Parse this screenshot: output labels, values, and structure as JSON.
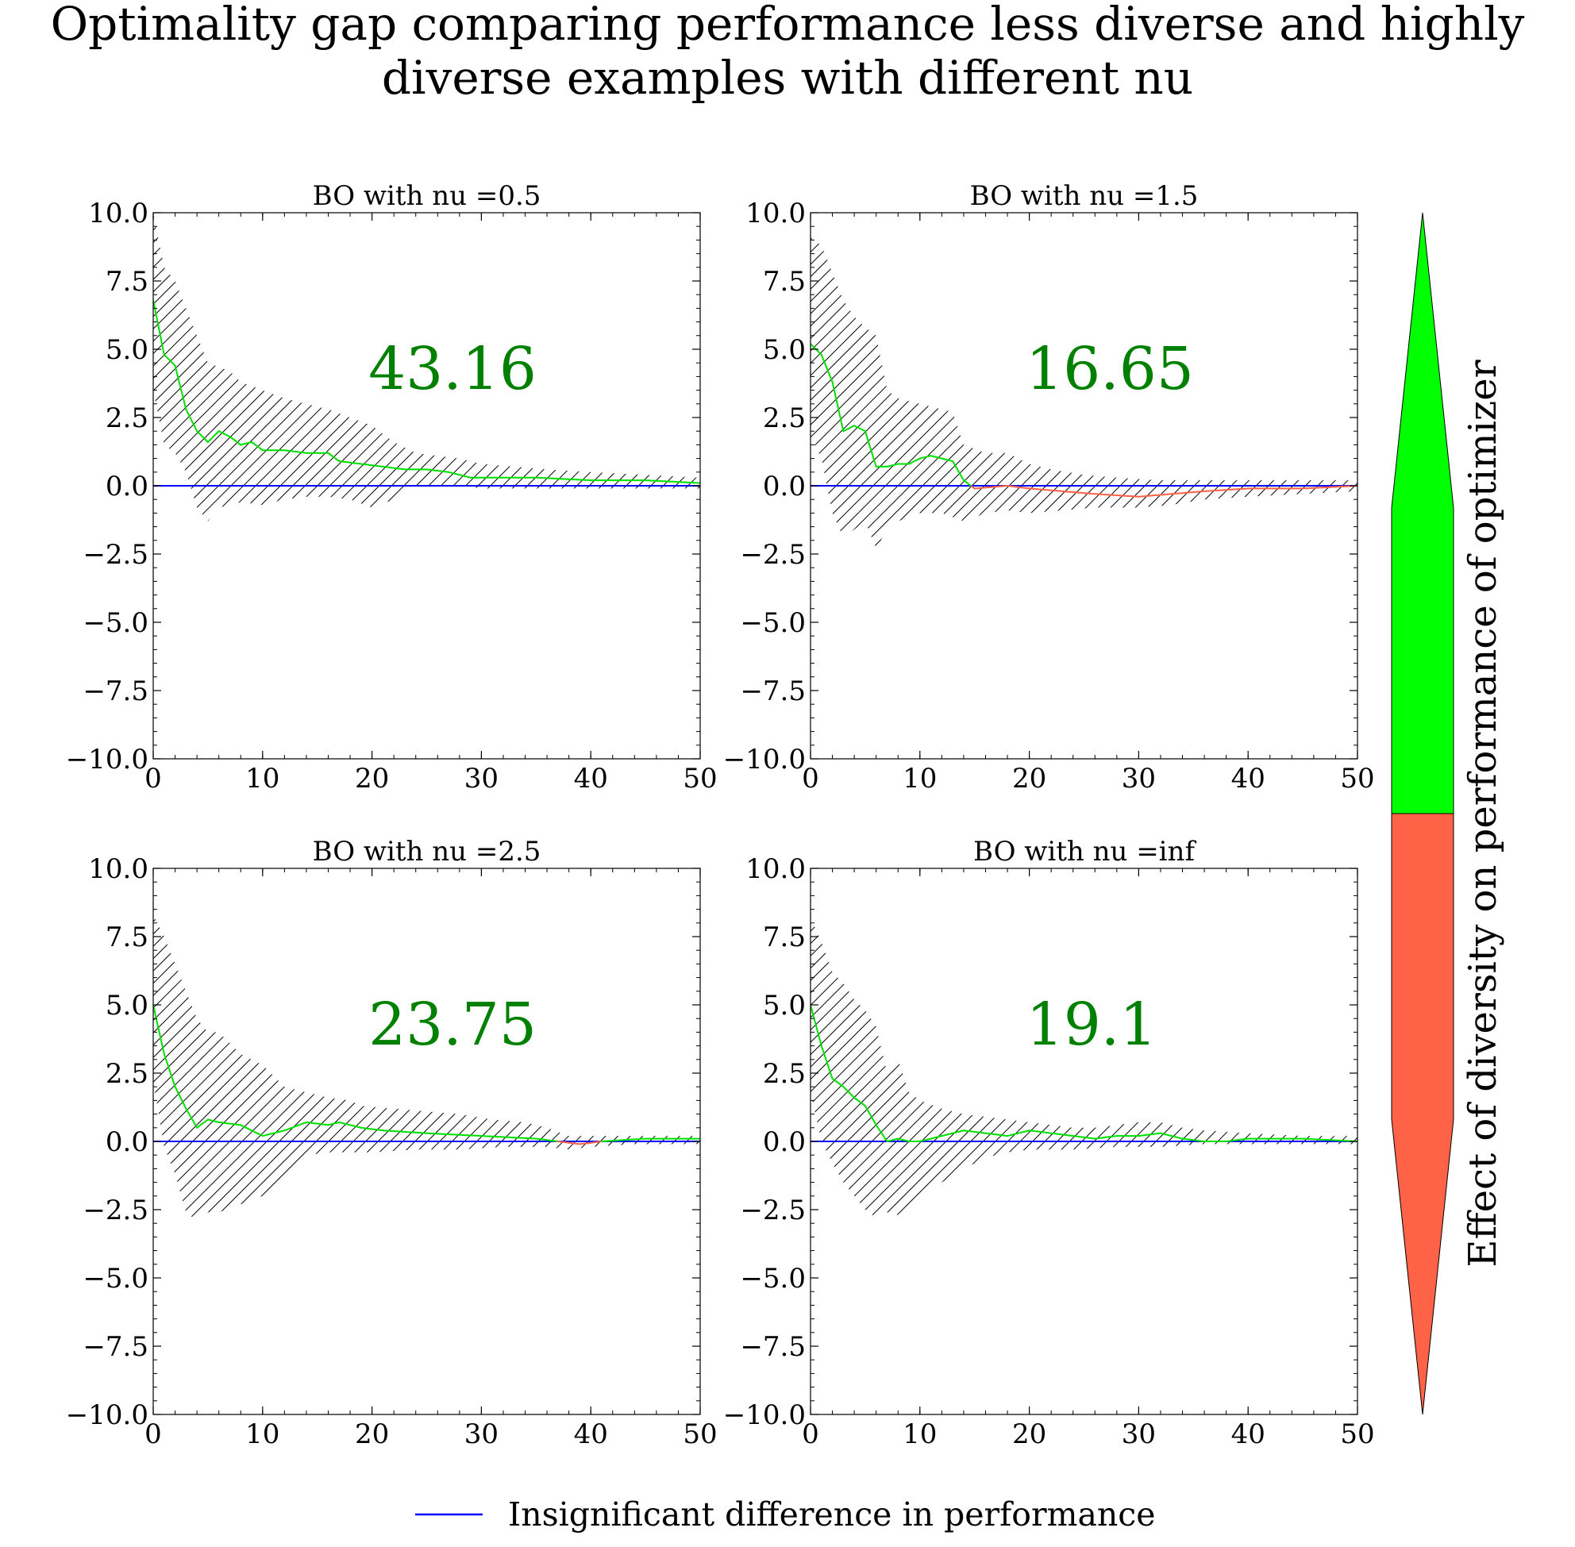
{
  "figure": {
    "title_line1": "Optimality gap comparing performance less diverse and highly",
    "title_line2": "diverse examples with different nu",
    "colorbar_label": "Effect of diversity on performance of optimizer",
    "legend_label": "Insignificant difference in performance"
  },
  "colors": {
    "baseline": "#0000ff",
    "positive_line": "#00e000",
    "negative_line": "#ff6347",
    "annotation": "#008000",
    "colorbar_top": "#00ff00",
    "colorbar_bottom": "#ff6347",
    "hatch": "#000000"
  },
  "chart_data": [
    {
      "type": "line",
      "title": "BO with nu =0.5",
      "annotation": "43.16",
      "xlim": [
        0,
        50
      ],
      "ylim": [
        -10,
        10
      ],
      "xticks": [
        "0",
        "10",
        "20",
        "30",
        "40",
        "50"
      ],
      "yticks": [
        "10.0",
        "7.5",
        "5.0",
        "2.5",
        "0.0",
        "−2.5",
        "−5.0",
        "−7.5",
        "−10.0"
      ],
      "mean": [
        [
          0,
          6.8
        ],
        [
          1,
          4.8
        ],
        [
          2,
          4.4
        ],
        [
          3,
          2.8
        ],
        [
          4,
          2.0
        ],
        [
          5,
          1.6
        ],
        [
          6,
          2.0
        ],
        [
          7,
          1.8
        ],
        [
          8,
          1.5
        ],
        [
          9,
          1.6
        ],
        [
          10,
          1.3
        ],
        [
          12,
          1.3
        ],
        [
          14,
          1.2
        ],
        [
          16,
          1.2
        ],
        [
          17,
          0.9
        ],
        [
          19,
          0.8
        ],
        [
          21,
          0.7
        ],
        [
          23,
          0.6
        ],
        [
          25,
          0.6
        ],
        [
          27,
          0.5
        ],
        [
          29,
          0.3
        ],
        [
          31,
          0.3
        ],
        [
          35,
          0.3
        ],
        [
          40,
          0.2
        ],
        [
          45,
          0.2
        ],
        [
          50,
          0.1
        ]
      ],
      "band_upper": [
        [
          0,
          10
        ],
        [
          1,
          8
        ],
        [
          2,
          7.5
        ],
        [
          3,
          6.5
        ],
        [
          4,
          5.5
        ],
        [
          5,
          4.5
        ],
        [
          7,
          4.2
        ],
        [
          8,
          3.8
        ],
        [
          10,
          3.5
        ],
        [
          12,
          3.2
        ],
        [
          14,
          3.0
        ],
        [
          16,
          2.8
        ],
        [
          18,
          2.5
        ],
        [
          20,
          2.2
        ],
        [
          22,
          1.6
        ],
        [
          24,
          1.2
        ],
        [
          26,
          1.1
        ],
        [
          28,
          1.0
        ],
        [
          30,
          0.8
        ],
        [
          33,
          0.7
        ],
        [
          36,
          0.6
        ],
        [
          40,
          0.5
        ],
        [
          45,
          0.4
        ],
        [
          50,
          0.3
        ]
      ],
      "band_lower": [
        [
          0,
          3.5
        ],
        [
          1,
          1.5
        ],
        [
          2,
          1.2
        ],
        [
          3,
          0.5
        ],
        [
          4,
          -0.8
        ],
        [
          5,
          -1.3
        ],
        [
          6,
          -0.8
        ],
        [
          8,
          -0.6
        ],
        [
          10,
          -0.7
        ],
        [
          12,
          -0.5
        ],
        [
          14,
          -0.4
        ],
        [
          16,
          -0.4
        ],
        [
          18,
          -0.5
        ],
        [
          20,
          -0.8
        ],
        [
          22,
          -0.5
        ],
        [
          24,
          0.0
        ],
        [
          26,
          0.0
        ],
        [
          28,
          0.0
        ],
        [
          30,
          -0.1
        ],
        [
          35,
          -0.1
        ],
        [
          40,
          -0.1
        ],
        [
          45,
          -0.1
        ],
        [
          50,
          -0.1
        ]
      ]
    },
    {
      "type": "line",
      "title": "BO with nu =1.5",
      "annotation": "16.65",
      "xlim": [
        0,
        50
      ],
      "ylim": [
        -10,
        10
      ],
      "xticks": [
        "0",
        "10",
        "20",
        "30",
        "40",
        "50"
      ],
      "yticks": [
        "10.0",
        "7.5",
        "5.0",
        "2.5",
        "0.0",
        "−2.5",
        "−5.0",
        "−7.5",
        "−10.0"
      ],
      "mean": [
        [
          0,
          5.2
        ],
        [
          1,
          4.8
        ],
        [
          2,
          3.8
        ],
        [
          3,
          2.0
        ],
        [
          4,
          2.2
        ],
        [
          5,
          2.0
        ],
        [
          6,
          0.7
        ],
        [
          7,
          0.7
        ],
        [
          8,
          0.8
        ],
        [
          9,
          0.8
        ],
        [
          10,
          1.0
        ],
        [
          11,
          1.1
        ],
        [
          12,
          1.0
        ],
        [
          13,
          0.9
        ],
        [
          14,
          0.2
        ],
        [
          15,
          -0.1
        ],
        [
          18,
          0.0
        ],
        [
          20,
          -0.1
        ],
        [
          23,
          -0.2
        ],
        [
          26,
          -0.3
        ],
        [
          30,
          -0.4
        ],
        [
          33,
          -0.3
        ],
        [
          36,
          -0.2
        ],
        [
          40,
          -0.1
        ],
        [
          45,
          -0.1
        ],
        [
          50,
          0.0
        ]
      ],
      "band_upper": [
        [
          0,
          9.1
        ],
        [
          1,
          8.8
        ],
        [
          2,
          7.8
        ],
        [
          3,
          6.8
        ],
        [
          4,
          6.2
        ],
        [
          5,
          5.8
        ],
        [
          6,
          5.5
        ],
        [
          7,
          3.5
        ],
        [
          8,
          3.2
        ],
        [
          10,
          3.0
        ],
        [
          12,
          2.8
        ],
        [
          13,
          2.7
        ],
        [
          14,
          1.5
        ],
        [
          16,
          1.2
        ],
        [
          18,
          1.2
        ],
        [
          20,
          0.8
        ],
        [
          22,
          0.6
        ],
        [
          25,
          0.4
        ],
        [
          28,
          0.3
        ],
        [
          32,
          0.2
        ],
        [
          36,
          0.2
        ],
        [
          40,
          0.2
        ],
        [
          45,
          0.2
        ],
        [
          50,
          0.2
        ]
      ],
      "band_lower": [
        [
          0,
          1.8
        ],
        [
          1,
          1.0
        ],
        [
          2,
          -1.0
        ],
        [
          3,
          -1.9
        ],
        [
          4,
          -1.6
        ],
        [
          5,
          -1.3
        ],
        [
          6,
          -2.3
        ],
        [
          7,
          -1.6
        ],
        [
          8,
          -1.3
        ],
        [
          10,
          -1.0
        ],
        [
          12,
          -1.0
        ],
        [
          14,
          -1.3
        ],
        [
          16,
          -1.0
        ],
        [
          18,
          -0.9
        ],
        [
          20,
          -1.0
        ],
        [
          23,
          -0.9
        ],
        [
          26,
          -0.8
        ],
        [
          30,
          -0.8
        ],
        [
          33,
          -0.7
        ],
        [
          36,
          -0.5
        ],
        [
          40,
          -0.4
        ],
        [
          45,
          -0.3
        ],
        [
          50,
          -0.2
        ]
      ]
    },
    {
      "type": "line",
      "title": "BO with nu =2.5",
      "annotation": "23.75",
      "xlim": [
        0,
        50
      ],
      "ylim": [
        -10,
        10
      ],
      "xticks": [
        "0",
        "10",
        "20",
        "30",
        "40",
        "50"
      ],
      "yticks": [
        "10.0",
        "7.5",
        "5.0",
        "2.5",
        "0.0",
        "−2.5",
        "−5.0",
        "−7.5",
        "−10.0"
      ],
      "mean": [
        [
          0,
          5.0
        ],
        [
          1,
          3.2
        ],
        [
          2,
          2.0
        ],
        [
          3,
          1.2
        ],
        [
          4,
          0.5
        ],
        [
          5,
          0.8
        ],
        [
          6,
          0.7
        ],
        [
          8,
          0.6
        ],
        [
          10,
          0.2
        ],
        [
          12,
          0.4
        ],
        [
          14,
          0.7
        ],
        [
          16,
          0.6
        ],
        [
          17,
          0.7
        ],
        [
          19,
          0.5
        ],
        [
          21,
          0.4
        ],
        [
          25,
          0.3
        ],
        [
          30,
          0.2
        ],
        [
          35,
          0.1
        ],
        [
          37,
          0.0
        ],
        [
          39,
          -0.1
        ],
        [
          41,
          0.0
        ],
        [
          45,
          0.1
        ],
        [
          50,
          0.1
        ]
      ],
      "band_upper": [
        [
          0,
          8.3
        ],
        [
          1,
          7.5
        ],
        [
          2,
          6.5
        ],
        [
          3,
          5.5
        ],
        [
          4,
          4.5
        ],
        [
          5,
          4.0
        ],
        [
          6,
          4.0
        ],
        [
          7,
          3.6
        ],
        [
          8,
          3.2
        ],
        [
          10,
          2.8
        ],
        [
          12,
          2.0
        ],
        [
          14,
          1.8
        ],
        [
          16,
          1.6
        ],
        [
          18,
          1.5
        ],
        [
          19,
          1.3
        ],
        [
          22,
          1.2
        ],
        [
          25,
          1.1
        ],
        [
          28,
          1.0
        ],
        [
          31,
          0.8
        ],
        [
          34,
          0.7
        ],
        [
          36,
          0.5
        ],
        [
          38,
          0.2
        ],
        [
          42,
          0.2
        ],
        [
          46,
          0.2
        ],
        [
          50,
          0.2
        ]
      ],
      "band_lower": [
        [
          0,
          2.2
        ],
        [
          1,
          -0.2
        ],
        [
          2,
          -1.2
        ],
        [
          3,
          -2.6
        ],
        [
          4,
          -2.9
        ],
        [
          5,
          -2.6
        ],
        [
          6,
          -2.6
        ],
        [
          8,
          -2.3
        ],
        [
          10,
          -2.0
        ],
        [
          12,
          -1.2
        ],
        [
          14,
          -0.5
        ],
        [
          16,
          -0.4
        ],
        [
          18,
          -0.4
        ],
        [
          20,
          -0.4
        ],
        [
          24,
          -0.3
        ],
        [
          28,
          -0.3
        ],
        [
          32,
          -0.2
        ],
        [
          36,
          -0.2
        ],
        [
          38,
          -0.3
        ],
        [
          40,
          -0.2
        ],
        [
          44,
          -0.1
        ],
        [
          50,
          -0.1
        ]
      ]
    },
    {
      "type": "line",
      "title": "BO with nu =inf",
      "annotation": "19.1",
      "xlim": [
        0,
        50
      ],
      "ylim": [
        -10,
        10
      ],
      "xticks": [
        "0",
        "10",
        "20",
        "30",
        "40",
        "50"
      ],
      "yticks": [
        "10.0",
        "7.5",
        "5.0",
        "2.5",
        "0.0",
        "−2.5",
        "−5.0",
        "−7.5",
        "−10.0"
      ],
      "mean": [
        [
          0,
          5.0
        ],
        [
          1,
          3.5
        ],
        [
          2,
          2.3
        ],
        [
          3,
          2.0
        ],
        [
          4,
          1.6
        ],
        [
          5,
          1.3
        ],
        [
          6,
          0.6
        ],
        [
          7,
          0.0
        ],
        [
          8,
          0.1
        ],
        [
          9,
          0.0
        ],
        [
          10,
          0.0
        ],
        [
          12,
          0.2
        ],
        [
          14,
          0.4
        ],
        [
          16,
          0.3
        ],
        [
          18,
          0.2
        ],
        [
          20,
          0.4
        ],
        [
          22,
          0.3
        ],
        [
          24,
          0.2
        ],
        [
          26,
          0.1
        ],
        [
          28,
          0.2
        ],
        [
          30,
          0.2
        ],
        [
          32,
          0.3
        ],
        [
          34,
          0.1
        ],
        [
          36,
          0.0
        ],
        [
          38,
          0.0
        ],
        [
          40,
          0.1
        ],
        [
          45,
          0.1
        ],
        [
          50,
          0.0
        ]
      ],
      "band_upper": [
        [
          0,
          8.2
        ],
        [
          1,
          7.3
        ],
        [
          2,
          6.2
        ],
        [
          3,
          5.8
        ],
        [
          4,
          5.2
        ],
        [
          5,
          4.8
        ],
        [
          6,
          4.2
        ],
        [
          7,
          2.5
        ],
        [
          8,
          3.0
        ],
        [
          9,
          1.8
        ],
        [
          10,
          1.5
        ],
        [
          12,
          1.2
        ],
        [
          14,
          1.0
        ],
        [
          16,
          0.9
        ],
        [
          18,
          0.8
        ],
        [
          20,
          0.7
        ],
        [
          22,
          0.6
        ],
        [
          24,
          0.5
        ],
        [
          26,
          0.5
        ],
        [
          28,
          0.6
        ],
        [
          30,
          0.7
        ],
        [
          32,
          0.7
        ],
        [
          34,
          0.5
        ],
        [
          36,
          0.4
        ],
        [
          40,
          0.3
        ],
        [
          45,
          0.2
        ],
        [
          50,
          0.2
        ]
      ],
      "band_lower": [
        [
          0,
          1.8
        ],
        [
          1,
          0.0
        ],
        [
          2,
          -0.8
        ],
        [
          3,
          -1.5
        ],
        [
          4,
          -2.0
        ],
        [
          5,
          -2.5
        ],
        [
          6,
          -2.8
        ],
        [
          7,
          -2.6
        ],
        [
          8,
          -2.7
        ],
        [
          9,
          -2.3
        ],
        [
          10,
          -1.9
        ],
        [
          12,
          -1.5
        ],
        [
          14,
          -1.0
        ],
        [
          16,
          -0.6
        ],
        [
          18,
          -0.4
        ],
        [
          20,
          -0.3
        ],
        [
          24,
          -0.3
        ],
        [
          28,
          -0.2
        ],
        [
          32,
          -0.2
        ],
        [
          36,
          -0.1
        ],
        [
          40,
          -0.1
        ],
        [
          45,
          -0.1
        ],
        [
          50,
          -0.1
        ]
      ]
    }
  ]
}
